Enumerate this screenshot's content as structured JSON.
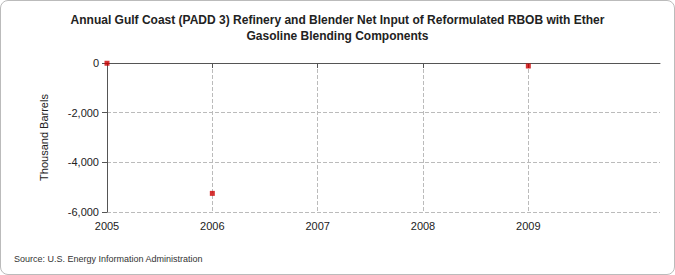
{
  "chart_data": {
    "type": "scatter",
    "title": "Annual Gulf Coast (PADD 3) Refinery and Blender Net Input of Reformulated RBOB with Ether\nGasoline Blending Components",
    "y_label": "Thousand Barrels",
    "source": "Source: U.S. Energy Information Administration",
    "x": [
      2005,
      2006,
      2009
    ],
    "values": [
      -10,
      -5250,
      -120
    ],
    "color": "#cc0000",
    "marker": "square",
    "xlim": [
      2005,
      2010.25
    ],
    "xticks": [
      2005,
      2006,
      2007,
      2008,
      2009
    ],
    "ylim": [
      -6000,
      0
    ],
    "yticks": [
      {
        "value": -6000,
        "label": "-6,000"
      },
      {
        "value": -4000,
        "label": "-4,000"
      },
      {
        "value": -2000,
        "label": "-2,000"
      },
      0
    ],
    "grid": true
  }
}
